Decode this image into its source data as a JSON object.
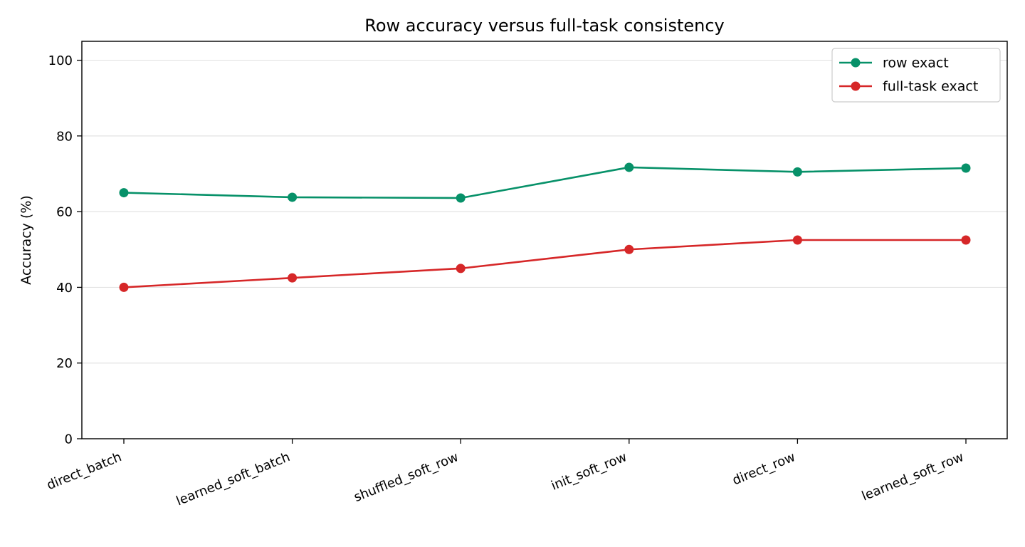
{
  "chart_data": {
    "type": "line",
    "title": "Row accuracy versus full-task consistency",
    "xlabel": "",
    "ylabel": "Accuracy (%)",
    "categories": [
      "direct_batch",
      "learned_soft_batch",
      "shuffled_soft_row",
      "init_soft_row",
      "direct_row",
      "learned_soft_row"
    ],
    "ylim": [
      0,
      105
    ],
    "yticks": [
      0,
      20,
      40,
      60,
      80,
      100
    ],
    "grid": "horizontal",
    "legend_position": "top-right",
    "series": [
      {
        "name": "row exact",
        "color": "#079169",
        "values": [
          65.0,
          63.8,
          63.6,
          71.7,
          70.5,
          71.5
        ]
      },
      {
        "name": "full-task exact",
        "color": "#d62728",
        "values": [
          40.0,
          42.5,
          45.0,
          50.0,
          52.5,
          52.5
        ]
      }
    ]
  }
}
